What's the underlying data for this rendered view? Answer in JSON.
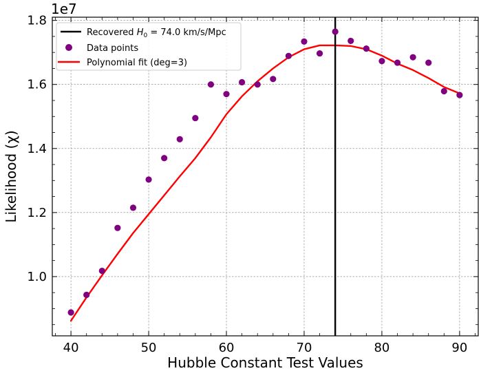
{
  "chart_data": {
    "type": "scatter",
    "xlabel": "Hubble Constant Test Values",
    "ylabel": "Likelihood (χ)",
    "y_offset_label": "1e7",
    "xlim": [
      37.6,
      92.4
    ],
    "ylim": [
      8.15,
      18.1
    ],
    "y_scale_exponent": 7,
    "x_ticks": [
      40,
      50,
      60,
      70,
      80,
      90
    ],
    "y_ticks": [
      10,
      12,
      14,
      16,
      18
    ],
    "y_tick_labels": [
      "1.0",
      "1.2",
      "1.4",
      "1.6",
      "1.8"
    ],
    "grid": true,
    "legend_placement": "upper-left",
    "vline": {
      "name": "Recovered H0 = 74.0 km/s/Mpc",
      "x": 74.0,
      "color": "#000000"
    },
    "legend": {
      "vline_prefix": "Recovered ",
      "vline_symbol": "H",
      "vline_sub": "0",
      "vline_suffix": " = 74.0 km/s/Mpc",
      "points_label": "Data points",
      "fit_label": "Polynomial fit (deg=3)"
    },
    "series": [
      {
        "name": "Data points",
        "kind": "scatter",
        "color": "#800080",
        "x": [
          40,
          42,
          44,
          46,
          48,
          50,
          52,
          54,
          56,
          58,
          60,
          62,
          64,
          66,
          68,
          70,
          72,
          74,
          76,
          78,
          80,
          82,
          84,
          86,
          88,
          90
        ],
        "y": [
          8.88,
          9.43,
          10.18,
          11.52,
          12.15,
          13.03,
          13.7,
          14.29,
          14.95,
          16.0,
          15.7,
          16.07,
          16.0,
          16.17,
          16.89,
          17.34,
          16.97,
          17.65,
          17.36,
          17.12,
          16.73,
          16.68,
          16.85,
          16.68,
          15.79,
          15.67
        ]
      },
      {
        "name": "Polynomial fit (deg=3)",
        "kind": "line",
        "color": "#ff0000",
        "x": [
          40,
          42,
          44,
          46,
          48,
          50,
          52,
          54,
          56,
          58,
          60,
          62,
          64,
          66,
          68,
          70,
          72,
          74,
          76,
          78,
          80,
          82,
          84,
          86,
          88,
          90
        ],
        "y": [
          8.62,
          9.35,
          10.04,
          10.71,
          11.36,
          11.95,
          12.54,
          13.13,
          13.7,
          14.35,
          15.07,
          15.63,
          16.1,
          16.5,
          16.85,
          17.1,
          17.22,
          17.22,
          17.2,
          17.1,
          16.9,
          16.65,
          16.45,
          16.2,
          15.92,
          15.72
        ]
      }
    ]
  }
}
